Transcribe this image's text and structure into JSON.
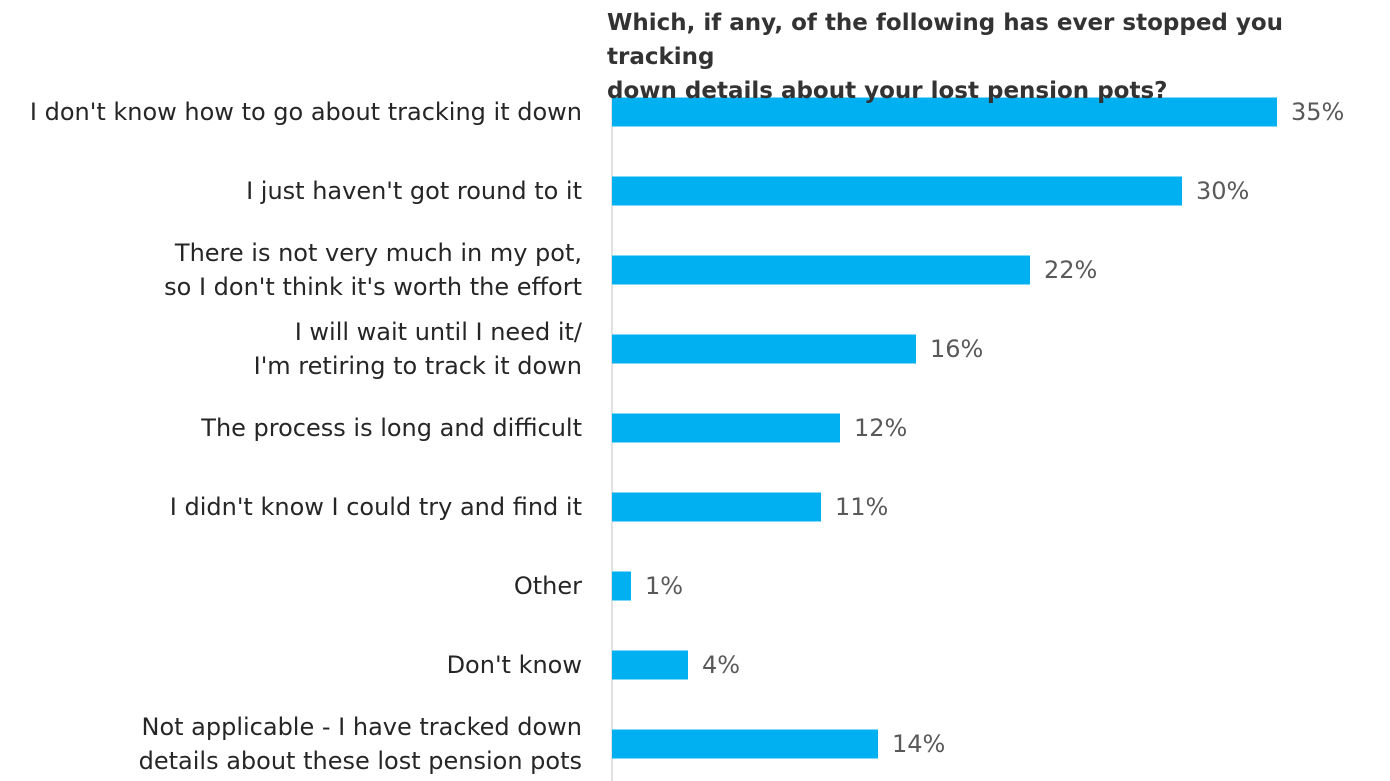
{
  "chart_data": {
    "type": "barh",
    "title": "Which, if any, of the following has ever stopped you tracking\ndown details about your lost pension pots?",
    "categories": [
      "I don't know how to go about tracking it down",
      "I just haven't got round to it",
      "There is not very much in my pot,\nso I don't think it's worth the effort",
      "I will wait until I need it/\nI'm retiring to track it down",
      "The process is long and difficult",
      "I didn't know I could try and find it",
      "Other",
      "Don't know",
      "Not applicable - I have tracked down\ndetails about these lost pension pots"
    ],
    "values": [
      35,
      30,
      22,
      16,
      12,
      11,
      1,
      4,
      14
    ],
    "value_labels": [
      "35%",
      "30%",
      "22%",
      "16%",
      "12%",
      "11%",
      "1%",
      "4%",
      "14%"
    ],
    "color": "#00b0f0",
    "xlim": [
      0,
      35
    ]
  }
}
